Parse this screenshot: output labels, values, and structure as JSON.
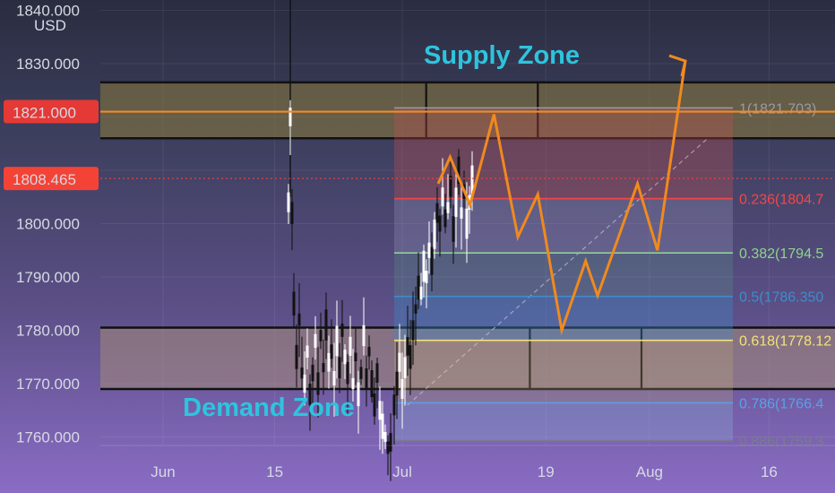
{
  "chart_data": {
    "type": "candlestick",
    "currency": "USD",
    "y_ticks": [
      "1840.000",
      "1830.000",
      "1821.000",
      "1808.465",
      "1800.000",
      "1790.000",
      "1780.000",
      "1770.000",
      "1760.000"
    ],
    "y_tick_values": [
      1840,
      1830,
      null,
      null,
      1800,
      1790,
      1780,
      1770,
      1760
    ],
    "ylim": [
      1758,
      1842
    ],
    "x_ticks": [
      {
        "label": "Jun",
        "day": 0
      },
      {
        "label": "15",
        "day": 14
      },
      {
        "label": "Jul",
        "day": 30
      },
      {
        "label": "19",
        "day": 48
      },
      {
        "label": "Aug",
        "day": 61
      },
      {
        "label": "16",
        "day": 76
      }
    ],
    "price_markers": [
      {
        "label": "1821.000",
        "value": 1821.0,
        "color": "#e53935",
        "line_color": "#f08a2c",
        "style": "solid"
      },
      {
        "label": "1808.465",
        "value": 1808.465,
        "color": "#f44336",
        "line_color": "#e0453a",
        "style": "dotted"
      }
    ],
    "zones": [
      {
        "name": "Supply Zone",
        "y_top": 1826.5,
        "y_bottom": 1816.0,
        "color": "#8a7a3a",
        "day_dividers": [
          33,
          47
        ]
      },
      {
        "name": "Demand Zone",
        "y_top": 1780.5,
        "y_bottom": 1769.0,
        "color": "#a48a78",
        "day_dividers": [
          46,
          60
        ]
      }
    ],
    "fibonacci": [
      {
        "label": "1(1821.703)",
        "value": 1821.703,
        "color": "#9a9aa6"
      },
      {
        "label": "0.236(1804.7",
        "value": 1804.7,
        "color": "#f04848"
      },
      {
        "label": "0.382(1794.5",
        "value": 1794.5,
        "color": "#8cd48c"
      },
      {
        "label": "0.5(1786.350",
        "value": 1786.35,
        "color": "#3f8cc8"
      },
      {
        "label": "0.618(1778.12",
        "value": 1778.12,
        "color": "#f2e27a"
      },
      {
        "label": "0.786(1766.4",
        "value": 1766.4,
        "color": "#5aa0e6"
      },
      {
        "label": "0.886(1759.3",
        "value": 1759.3,
        "color": "#7a7a90"
      }
    ],
    "projection": {
      "color": "#f08a1e",
      "points": [
        [
          34.5,
          1807.5
        ],
        [
          36,
          1812.5
        ],
        [
          38.5,
          1803.5
        ],
        [
          41.5,
          1820.5
        ],
        [
          44.5,
          1797.5
        ],
        [
          47,
          1805.5
        ],
        [
          50,
          1780
        ],
        [
          53,
          1793
        ],
        [
          54.5,
          1786.5
        ],
        [
          59.5,
          1807.5
        ],
        [
          62,
          1795
        ],
        [
          65.5,
          1830.5
        ]
      ]
    },
    "candles_summary": "OHLC candles from mid-June to early July"
  }
}
